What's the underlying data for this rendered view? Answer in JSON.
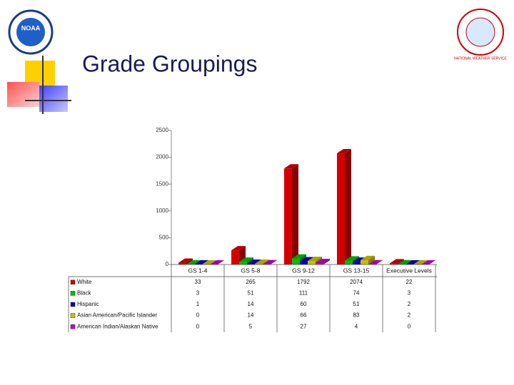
{
  "title": "Grade Groupings",
  "logos": {
    "left": "NOAA",
    "right": "NATIONAL WEATHER SERVICE"
  },
  "chart_data": {
    "type": "bar3d",
    "categories": [
      "GS 1-4",
      "GS 5-8",
      "GS 9-12",
      "GS 13-15",
      "Executive Levels"
    ],
    "series": [
      {
        "name": "White",
        "color": "#d40000",
        "values": [
          33,
          265,
          1792,
          2074,
          22
        ]
      },
      {
        "name": "Black",
        "color": "#00c000",
        "values": [
          3,
          51,
          111,
          74,
          3
        ]
      },
      {
        "name": "Hispanic",
        "color": "#0000c8",
        "values": [
          1,
          14,
          60,
          51,
          2
        ]
      },
      {
        "name": "Asian American/Pacific Islander",
        "color": "#c8c000",
        "values": [
          0,
          14,
          66,
          83,
          2
        ]
      },
      {
        "name": "American Indian/Alaskan Native",
        "color": "#c000c8",
        "values": [
          0,
          5,
          27,
          4,
          0
        ]
      }
    ],
    "ylim": [
      0,
      2500
    ],
    "yticks": [
      0,
      500,
      1000,
      1500,
      2000,
      2500
    ]
  }
}
